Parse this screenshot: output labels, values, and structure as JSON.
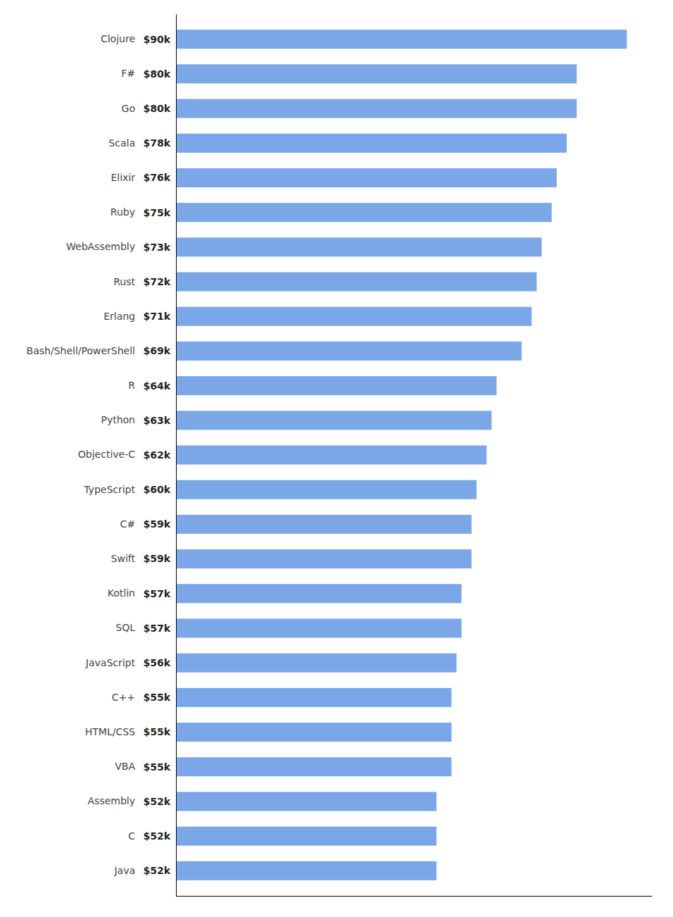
{
  "chart_data": {
    "type": "bar",
    "orientation": "horizontal",
    "categories": [
      "Clojure",
      "F#",
      "Go",
      "Scala",
      "Elixir",
      "Ruby",
      "WebAssembly",
      "Rust",
      "Erlang",
      "Bash/Shell/PowerShell",
      "R",
      "Python",
      "Objective-C",
      "TypeScript",
      "C#",
      "Swift",
      "Kotlin",
      "SQL",
      "JavaScript",
      "C++",
      "HTML/CSS",
      "VBA",
      "Assembly",
      "C",
      "Java"
    ],
    "values": [
      90,
      80,
      80,
      78,
      76,
      75,
      73,
      72,
      71,
      69,
      64,
      63,
      62,
      60,
      59,
      59,
      57,
      57,
      56,
      55,
      55,
      55,
      52,
      52,
      52
    ],
    "value_labels": [
      "$90k",
      "$80k",
      "$80k",
      "$78k",
      "$76k",
      "$75k",
      "$73k",
      "$72k",
      "$71k",
      "$69k",
      "$64k",
      "$63k",
      "$62k",
      "$60k",
      "$59k",
      "$59k",
      "$57k",
      "$57k",
      "$56k",
      "$55k",
      "$55k",
      "$55k",
      "$52k",
      "$52k",
      "$52k"
    ],
    "data_labels": true,
    "color": "#7ba7e8",
    "xlim": [
      0,
      95
    ],
    "tick_labels": "y"
  }
}
